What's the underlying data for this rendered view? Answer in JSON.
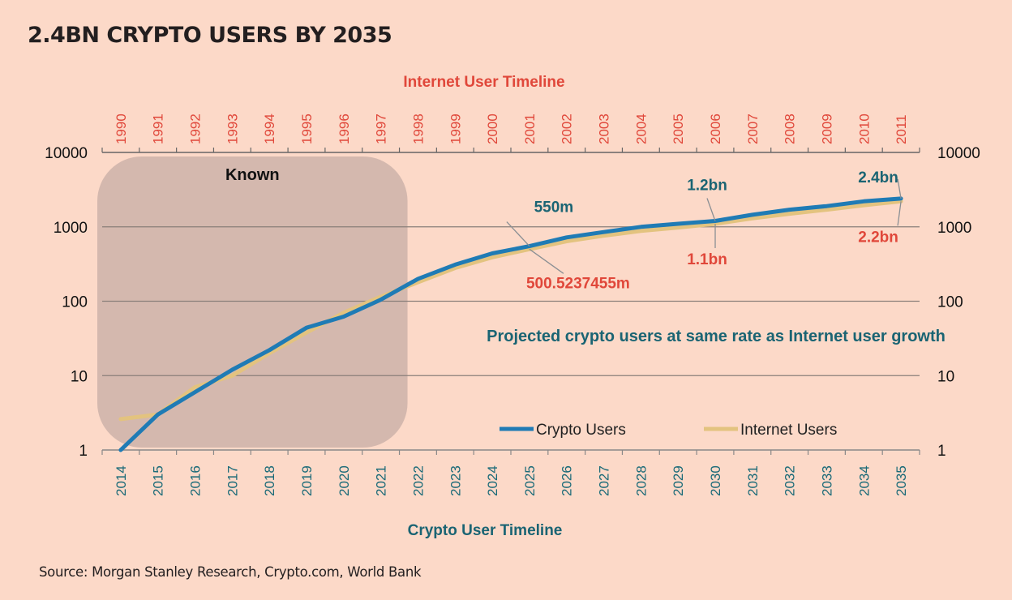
{
  "title": "2.4BN CRYPTO USERS BY 2035",
  "source": "Source: Morgan Stanley Research, Crypto.com, World Bank",
  "colors": {
    "background": "#fcd9c8",
    "crypto_line": "#1f7bb5",
    "internet_line": "#e3c37f",
    "known_region": "#d4b8ae",
    "teal_text": "#1a6473",
    "red_text": "#e0473a",
    "gridline": "#8a7f7a"
  },
  "chart_data": {
    "type": "line",
    "title": "2.4BN CRYPTO USERS BY 2035",
    "y_scale": "log",
    "ylim": [
      1,
      10000
    ],
    "y_ticks": [
      1,
      10,
      100,
      1000,
      10000
    ],
    "y_tick_labels": [
      "1",
      "10",
      "100",
      "1000",
      "10000"
    ],
    "grid": "horizontal",
    "bottom_axis": {
      "title": "Crypto User Timeline",
      "categories": [
        "2014",
        "2015",
        "2016",
        "2017",
        "2018",
        "2019",
        "2020",
        "2021",
        "2022",
        "2023",
        "2024",
        "2025",
        "2026",
        "2027",
        "2028",
        "2029",
        "2030",
        "2031",
        "2032",
        "2033",
        "2034",
        "2035"
      ]
    },
    "top_axis": {
      "title": "Internet User Timeline",
      "categories": [
        "1990",
        "1991",
        "1992",
        "1993",
        "1994",
        "1995",
        "1996",
        "1997",
        "1998",
        "1999",
        "2000",
        "2001",
        "2002",
        "2003",
        "2004",
        "2005",
        "2006",
        "2007",
        "2008",
        "2009",
        "2010",
        "2011"
      ]
    },
    "series": [
      {
        "name": "Crypto Users",
        "color": "#1f7bb5",
        "values": [
          1,
          3,
          6,
          12,
          22,
          44,
          62,
          105,
          200,
          310,
          440,
          550,
          720,
          850,
          1000,
          1100,
          1200,
          1450,
          1700,
          1900,
          2200,
          2400
        ]
      },
      {
        "name": "Internet Users",
        "color": "#e3c37f",
        "values": [
          2.6,
          3,
          7,
          10,
          20,
          38,
          70,
          115,
          180,
          280,
          390,
          500.5237455,
          640,
          760,
          880,
          980,
          1100,
          1300,
          1500,
          1700,
          1950,
          2200
        ]
      }
    ],
    "shaded_region": {
      "label": "Known",
      "from_category": "2014",
      "to_category": "2021"
    },
    "annotations": [
      {
        "text": "550m",
        "series": "Crypto Users",
        "category": "2025",
        "position": "above"
      },
      {
        "text": "500.5237455m",
        "series": "Internet Users",
        "category": "2025",
        "position": "below"
      },
      {
        "text": "1.2bn",
        "series": "Crypto Users",
        "category": "2030",
        "position": "above"
      },
      {
        "text": "1.1bn",
        "series": "Internet Users",
        "category": "2030",
        "position": "below"
      },
      {
        "text": "2.4bn",
        "series": "Crypto Users",
        "category": "2035",
        "position": "above"
      },
      {
        "text": "2.2bn",
        "series": "Internet Users",
        "category": "2035",
        "position": "below"
      }
    ],
    "projection_note": "Projected crypto users at same rate as Internet user growth",
    "legend": {
      "placement": "bottom-right",
      "entries": [
        "Crypto Users",
        "Internet Users"
      ]
    }
  }
}
